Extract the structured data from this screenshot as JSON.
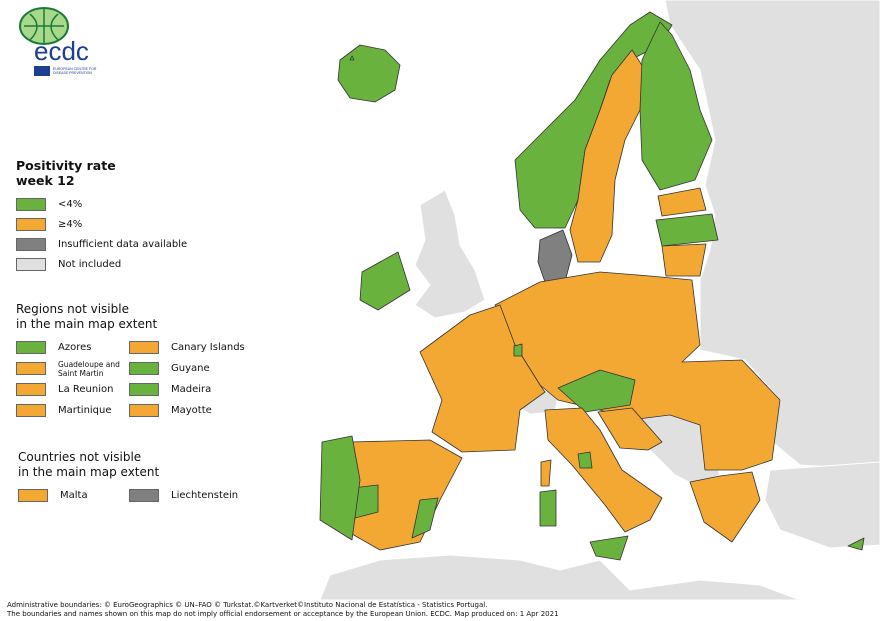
{
  "logo": {
    "text": "ecdc",
    "subtitle": "EUROPEAN CENTRE FOR DISEASE PREVENTION AND CONTROL"
  },
  "colors": {
    "below4": "#6ab23e",
    "above4": "#f3a834",
    "insufficient": "#808080",
    "not_included": "#e0e0e0",
    "sea": "#ffffff"
  },
  "legend": {
    "title_line1": "Positivity rate",
    "title_line2": "week 12",
    "items": [
      {
        "label": "<4%",
        "category": "below4"
      },
      {
        "label": "≥4%",
        "category": "above4"
      },
      {
        "label": "Insufficient data available",
        "category": "insufficient"
      },
      {
        "label": "Not included",
        "category": "not_included"
      }
    ]
  },
  "regions_not_visible": {
    "title_line1": "Regions not visible",
    "title_line2": "in the main map extent",
    "items": [
      {
        "label": "Azores",
        "category": "below4"
      },
      {
        "label": "Canary Islands",
        "category": "above4"
      },
      {
        "label": "Guadeloupe and Saint Martin",
        "category": "above4"
      },
      {
        "label": "Guyane",
        "category": "below4"
      },
      {
        "label": "La Reunion",
        "category": "above4"
      },
      {
        "label": "Madeira",
        "category": "below4"
      },
      {
        "label": "Martinique",
        "category": "above4"
      },
      {
        "label": "Mayotte",
        "category": "above4"
      }
    ]
  },
  "countries_not_visible": {
    "title_line1": "Countries not visible",
    "title_line2": "in the main map extent",
    "items": [
      {
        "label": "Malta",
        "category": "above4"
      },
      {
        "label": "Liechtenstein",
        "category": "insufficient"
      }
    ]
  },
  "map_regions": {
    "iceland": "below4",
    "norway": "below4",
    "sweden": "above4",
    "finland": "below4",
    "estonia": "above4",
    "latvia": "below4",
    "lithuania": "above4",
    "denmark": "insufficient",
    "ireland": "below4",
    "united-kingdom": "not_included",
    "france": "above4",
    "central-eastern-europe": "above4",
    "austria": "below4",
    "switzerland": "not_included",
    "italy": "above4",
    "umbria": "below4",
    "sicily": "below4",
    "sardinia": "below4",
    "corsica": "above4",
    "spain": "above4",
    "spain-interior": "below4",
    "valencia": "below4",
    "portugal": "below4",
    "greece": "above4",
    "croatia-slovenia": "above4",
    "western-balkans": "not_included",
    "eastern-europe": "not_included",
    "north-africa": "not_included",
    "turkey": "not_included",
    "cyprus": "below4",
    "luxembourg": "below4",
    "norway-north": "below4"
  },
  "footer": {
    "line1": "Administrative boundaries: © EuroGeographics © UN–FAO © Turkstat.©Kartverket©Instituto Nacional de Estatística - Statistics Portugal.",
    "line2": "The boundaries and names shown on this map do not imply official endorsement or acceptance by the European Union. ECDC. Map produced on: 1 Apr 2021"
  }
}
